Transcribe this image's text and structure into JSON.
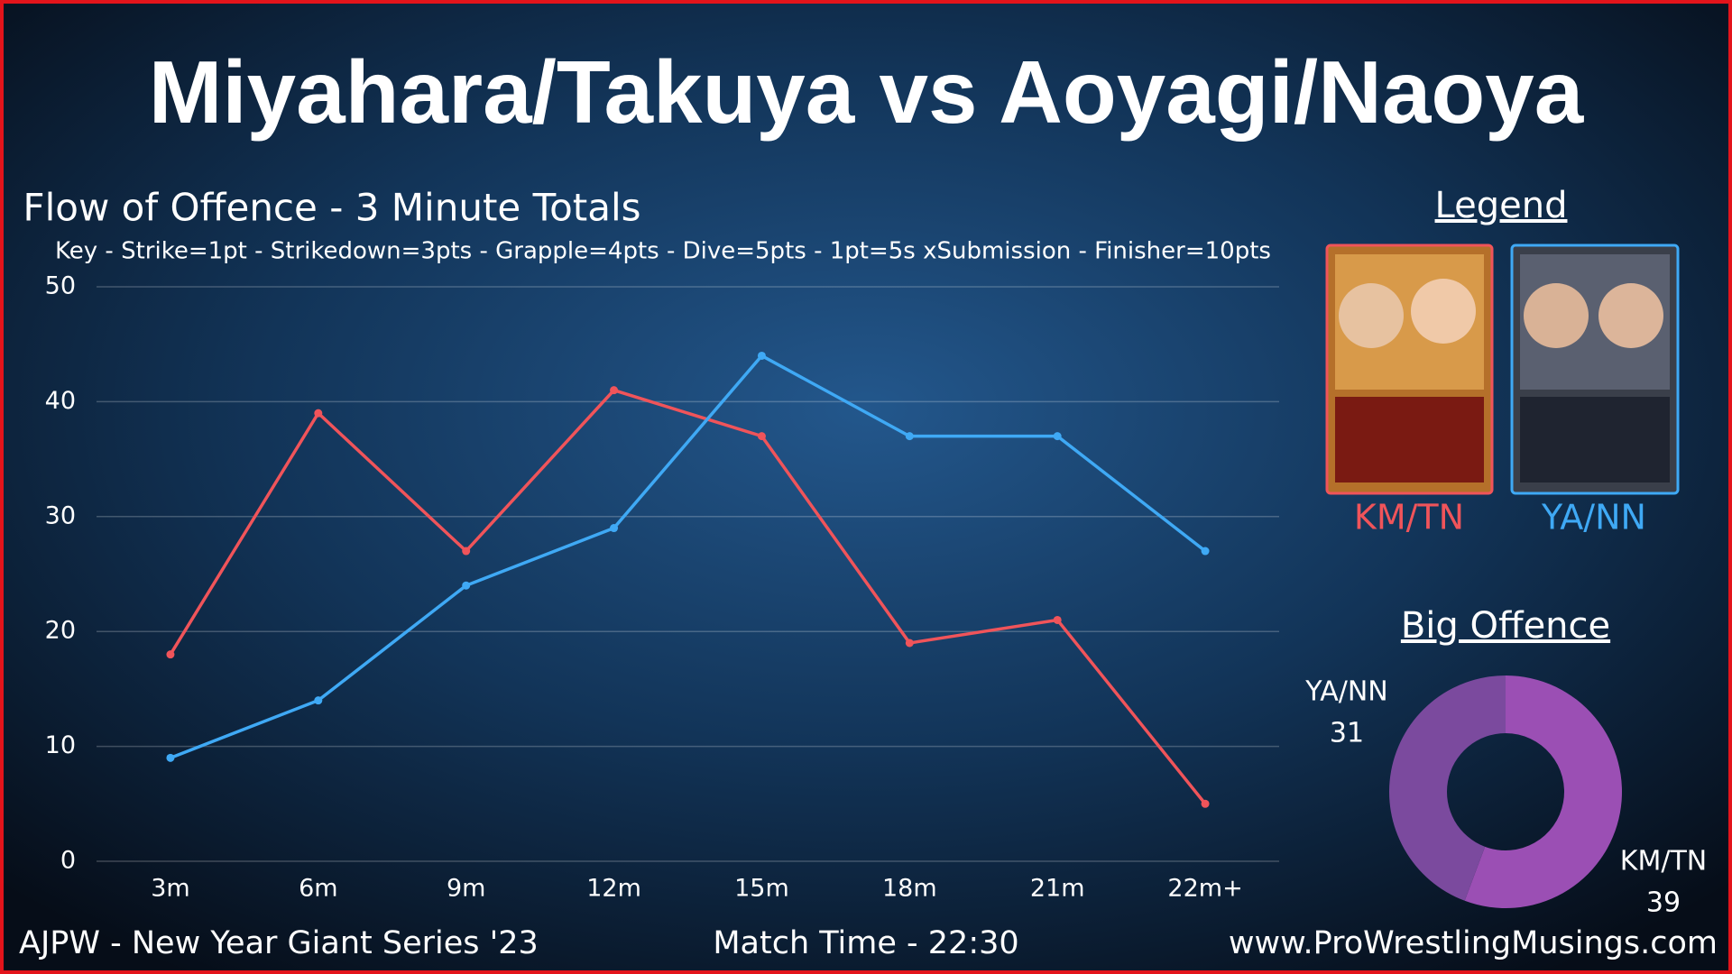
{
  "title": "Miyahara/Takuya vs Aoyagi/Naoya",
  "legend_heading": "Legend",
  "footer": {
    "left": "AJPW - New Year Giant Series '23",
    "center": "Match Time - 22:30",
    "right": "www.ProWrestlingMusings.com"
  },
  "chart_data": [
    {
      "type": "line",
      "title": "Flow of Offence - 3 Minute Totals",
      "subtitle": "Key - Strike=1pt - Strikedown=3pts - Grapple=4pts - Dive=5pts - 1pt=5s xSubmission - Finisher=10pts",
      "categories": [
        "3m",
        "6m",
        "9m",
        "12m",
        "15m",
        "18m",
        "21m",
        "22m+"
      ],
      "series": [
        {
          "name": "KM/TN",
          "color": "#f0545a",
          "values": [
            18,
            39,
            27,
            41,
            37,
            19,
            21,
            5
          ]
        },
        {
          "name": "YA/NN",
          "color": "#3fa9f5",
          "values": [
            9,
            14,
            24,
            29,
            44,
            37,
            37,
            27
          ]
        }
      ],
      "ylim": [
        0,
        50
      ],
      "yticks": [
        0,
        10,
        20,
        30,
        40,
        50
      ],
      "grid": true
    },
    {
      "type": "pie",
      "title": "Big Offence",
      "categories": [
        "YA/NN",
        "KM/TN"
      ],
      "values": [
        31,
        39
      ],
      "colors": [
        "#7b4a9e",
        "#9b4fb4"
      ]
    }
  ]
}
